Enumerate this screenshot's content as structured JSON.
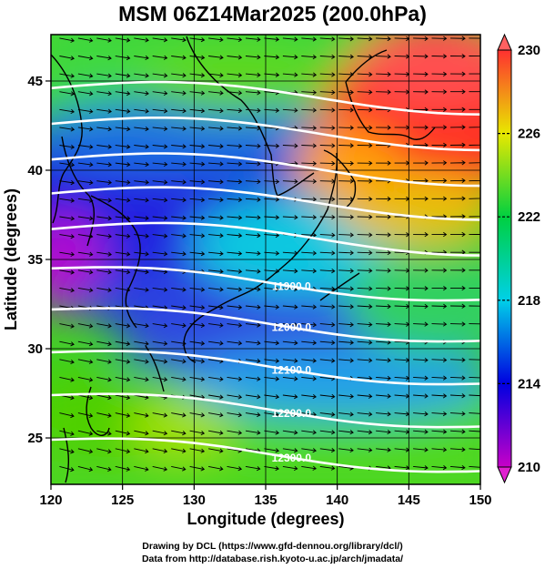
{
  "title": "MSM 06Z14Mar2025 (200.0hPa)",
  "credits": {
    "line1": "Drawing by DCL (https://www.gfd-dennou.org/library/dcl/)",
    "line2": "Data from http://database.rish.kyoto-u.ac.jp/arch/jmadata/"
  },
  "map": {
    "xlabel": "Longitude (degrees)",
    "ylabel": "Latitude  (degrees)",
    "lon_range": [
      120,
      150
    ],
    "lat_range": [
      22.4,
      47.6
    ],
    "lon_ticks": [
      "120",
      "125",
      "130",
      "135",
      "140",
      "145",
      "150"
    ],
    "lat_ticks": [
      "25",
      "30",
      "35",
      "40",
      "45"
    ],
    "grid": true,
    "colors": {
      "contour": "#ffffff",
      "coast": "#000000",
      "wind_vectors": "#000000"
    }
  },
  "colorbar": {
    "min": 210,
    "max": 230,
    "ticks": [
      "210",
      "214",
      "218",
      "222",
      "226",
      "230"
    ],
    "colors": [
      "#c800c8",
      "#0000e0",
      "#00d0e8",
      "#00d040",
      "#e8e800",
      "#ff3030"
    ]
  },
  "contours": [
    {
      "label": "11900.0",
      "lat": 34.5
    },
    {
      "label": "12000.0",
      "lat": 32.2
    },
    {
      "label": "12100.0",
      "lat": 29.8
    },
    {
      "label": "12200.0",
      "lat": 27.4
    },
    {
      "label": "12300.0",
      "lat": 24.9
    }
  ]
}
